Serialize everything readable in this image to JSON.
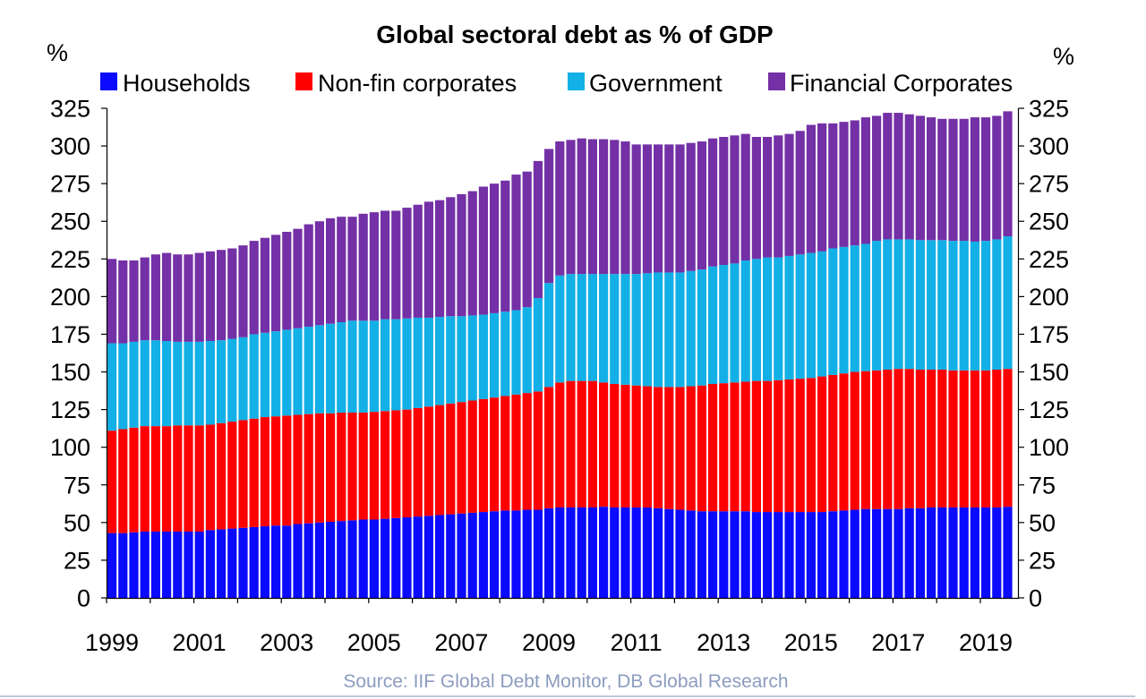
{
  "chart_data": {
    "type": "bar",
    "stacked": true,
    "title": "Global sectoral debt as % of GDP",
    "ylabel": "%",
    "y2label": "%",
    "ylim": [
      0,
      325
    ],
    "y_ticks": [
      0,
      25,
      50,
      75,
      100,
      125,
      150,
      175,
      200,
      225,
      250,
      275,
      300,
      325
    ],
    "x_tick_labels": [
      "1999",
      "2001",
      "2003",
      "2005",
      "2007",
      "2009",
      "2011",
      "2013",
      "2015",
      "2017",
      "2019"
    ],
    "legend_position": "top",
    "grid": false,
    "x": [
      1999,
      1999.25,
      1999.5,
      1999.75,
      2000,
      2000.25,
      2000.5,
      2000.75,
      2001,
      2001.25,
      2001.5,
      2001.75,
      2002,
      2002.25,
      2002.5,
      2002.75,
      2003,
      2003.25,
      2003.5,
      2003.75,
      2004,
      2004.25,
      2004.5,
      2004.75,
      2005,
      2005.25,
      2005.5,
      2005.75,
      2006,
      2006.25,
      2006.5,
      2006.75,
      2007,
      2007.25,
      2007.5,
      2007.75,
      2008,
      2008.25,
      2008.5,
      2008.75,
      2009,
      2009.25,
      2009.5,
      2009.75,
      2010,
      2010.25,
      2010.5,
      2010.75,
      2011,
      2011.25,
      2011.5,
      2011.75,
      2012,
      2012.25,
      2012.5,
      2012.75,
      2013,
      2013.25,
      2013.5,
      2013.75,
      2014,
      2014.25,
      2014.5,
      2014.75,
      2015,
      2015.25,
      2015.5,
      2015.75,
      2016,
      2016.25,
      2016.5,
      2016.75,
      2017,
      2017.25,
      2017.5,
      2017.75,
      2018,
      2018.25,
      2018.5,
      2018.75,
      2019,
      2019.25,
      2019.5
    ],
    "series": [
      {
        "name": "Households",
        "color": "#0a0aff",
        "values": [
          43,
          43,
          43.5,
          44,
          44,
          44,
          44,
          44,
          44,
          45,
          45.5,
          46,
          46.5,
          47,
          47.5,
          48,
          48,
          49,
          49.5,
          50,
          50.5,
          51,
          51.5,
          52,
          52,
          52.5,
          53,
          53.5,
          54,
          54.5,
          55,
          55.5,
          56,
          56.5,
          57,
          57.5,
          58,
          58,
          58.5,
          58.5,
          59.5,
          60,
          60,
          60,
          60,
          60.5,
          60,
          60,
          60,
          60,
          59.5,
          59,
          58.5,
          58,
          57.5,
          57.5,
          57.5,
          57.5,
          57.5,
          57,
          57,
          57,
          57,
          57,
          57,
          57,
          57.5,
          58,
          58.5,
          59,
          59,
          59,
          59,
          59.5,
          59.5,
          60,
          60,
          60,
          60,
          60,
          60,
          60,
          60.5
        ]
      },
      {
        "name": "Non-fin corporates",
        "color": "#ff0000",
        "values": [
          68,
          69,
          69.5,
          70,
          70,
          70,
          70.5,
          70.5,
          70.5,
          70,
          70.5,
          71,
          71.5,
          72,
          72.5,
          72.5,
          73,
          72.5,
          72.5,
          72.5,
          72,
          72,
          71.5,
          71,
          71.5,
          71.5,
          71.5,
          71.5,
          72,
          72.5,
          73,
          73.5,
          74,
          74.5,
          75,
          75.5,
          76,
          77,
          77.5,
          78.5,
          80.5,
          83,
          84,
          84,
          84,
          82.5,
          82,
          81.5,
          81,
          80.5,
          80.5,
          81,
          81.5,
          82.5,
          83.5,
          84.5,
          85,
          85.5,
          86,
          87,
          87,
          87.5,
          88,
          88.5,
          89,
          90,
          90.5,
          91,
          91.5,
          91.5,
          92,
          92.5,
          93,
          92.5,
          92,
          91.5,
          91.5,
          91,
          91,
          91,
          91,
          91.5,
          91.5
        ]
      },
      {
        "name": "Government",
        "color": "#12b0e6",
        "values": [
          58,
          57,
          57,
          57,
          57,
          56.5,
          55.5,
          55.5,
          55.5,
          55.5,
          55,
          55,
          55,
          56,
          56,
          56.5,
          57,
          57.5,
          58,
          58.5,
          59.5,
          60,
          61,
          61,
          60.5,
          61,
          60.5,
          60.5,
          60,
          59,
          58.5,
          58,
          57,
          56.5,
          56,
          56,
          56,
          56,
          57,
          62,
          69,
          71,
          71,
          71,
          71,
          72,
          73,
          73.5,
          74,
          75,
          76,
          76,
          76,
          76.5,
          77,
          78,
          78.5,
          79,
          80.5,
          81,
          82,
          81.5,
          82,
          82.5,
          83,
          83,
          84,
          84,
          84,
          84.5,
          86,
          86.5,
          86,
          86,
          86,
          86,
          86,
          86,
          86,
          85.5,
          86,
          86.5,
          88
        ]
      },
      {
        "name": "Financial Corporates",
        "color": "#7430a6",
        "values": [
          56,
          55,
          54,
          55,
          57,
          58.5,
          58,
          58,
          59,
          59.5,
          60,
          60,
          61,
          62,
          63,
          64,
          65,
          66,
          68,
          69,
          70,
          70,
          69,
          71,
          72,
          72,
          72,
          73.5,
          75,
          77,
          77.5,
          79,
          81,
          82.5,
          85,
          86,
          87,
          90,
          90,
          91,
          89,
          89,
          89,
          90,
          89.5,
          89.5,
          89,
          88,
          86,
          85.5,
          85,
          85,
          85,
          85,
          85,
          85,
          85,
          85,
          84,
          81,
          80,
          81,
          81,
          82,
          85,
          85,
          83,
          83,
          83,
          84,
          83,
          84,
          84,
          83,
          82.5,
          81.5,
          80.5,
          81,
          81,
          82.5,
          82,
          82,
          83
        ]
      }
    ],
    "source": "Source: IIF Global Debt Monitor, DB Global Research"
  }
}
